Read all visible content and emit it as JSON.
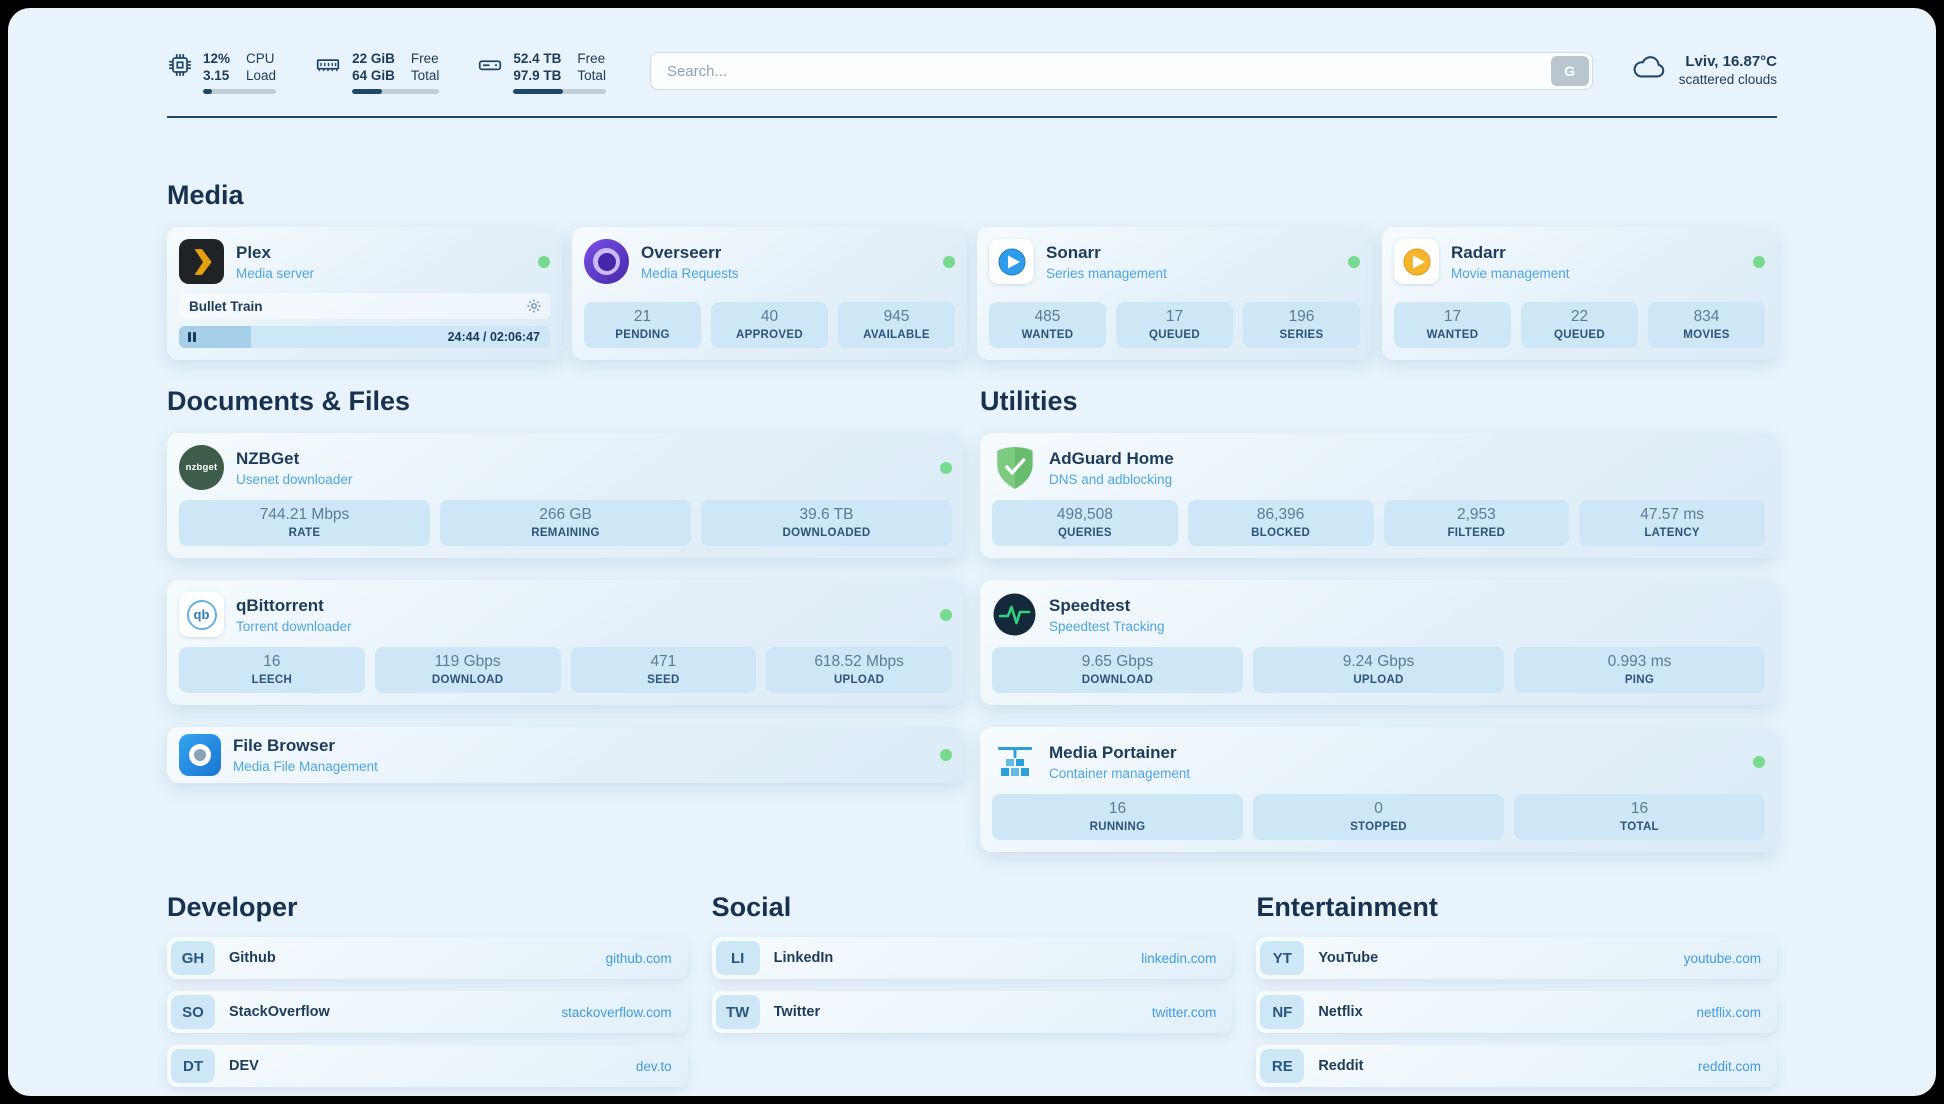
{
  "topbar": {
    "cpu": {
      "value_top": "12%",
      "value_bottom": "3.15",
      "label_top": "CPU",
      "label_bottom": "Load",
      "bar_percent": 12
    },
    "ram": {
      "value_top": "22 GiB",
      "value_bottom": "64 GiB",
      "label_top": "Free",
      "label_bottom": "Total",
      "bar_percent": 34
    },
    "disk": {
      "value_top": "52.4 TB",
      "value_bottom": "97.9 TB",
      "label_top": "Free",
      "label_bottom": "Total",
      "bar_percent": 54
    },
    "search": {
      "placeholder": "Search...",
      "button_label": "G"
    },
    "weather": {
      "location": "Lviv, 16.87°C",
      "condition": "scattered clouds"
    }
  },
  "media": {
    "title": "Media",
    "plex": {
      "name": "Plex",
      "subtitle": "Media server",
      "now_playing": "Bullet Train",
      "time": "24:44 / 02:06:47",
      "progress_percent": 19.5
    },
    "overseerr": {
      "name": "Overseerr",
      "subtitle": "Media Requests",
      "stats": [
        {
          "value": "21",
          "label": "PENDING"
        },
        {
          "value": "40",
          "label": "APPROVED"
        },
        {
          "value": "945",
          "label": "AVAILABLE"
        }
      ]
    },
    "sonarr": {
      "name": "Sonarr",
      "subtitle": "Series management",
      "stats": [
        {
          "value": "485",
          "label": "WANTED"
        },
        {
          "value": "17",
          "label": "QUEUED"
        },
        {
          "value": "196",
          "label": "SERIES"
        }
      ]
    },
    "radarr": {
      "name": "Radarr",
      "subtitle": "Movie management",
      "stats": [
        {
          "value": "17",
          "label": "WANTED"
        },
        {
          "value": "22",
          "label": "QUEUED"
        },
        {
          "value": "834",
          "label": "MOVIES"
        }
      ]
    }
  },
  "documents": {
    "title": "Documents & Files",
    "nzbget": {
      "name": "NZBGet",
      "subtitle": "Usenet downloader",
      "icon_text": "nzbget",
      "stats": [
        {
          "value": "744.21 Mbps",
          "label": "RATE"
        },
        {
          "value": "266 GB",
          "label": "REMAINING"
        },
        {
          "value": "39.6 TB",
          "label": "DOWNLOADED"
        }
      ]
    },
    "qbittorrent": {
      "name": "qBittorrent",
      "subtitle": "Torrent downloader",
      "icon_text": "qb",
      "stats": [
        {
          "value": "16",
          "label": "LEECH"
        },
        {
          "value": "119 Gbps",
          "label": "DOWNLOAD"
        },
        {
          "value": "471",
          "label": "SEED"
        },
        {
          "value": "618.52 Mbps",
          "label": "UPLOAD"
        }
      ]
    },
    "filebrowser": {
      "name": "File Browser",
      "subtitle": "Media File Management"
    }
  },
  "utilities": {
    "title": "Utilities",
    "adguard": {
      "name": "AdGuard Home",
      "subtitle": "DNS and adblocking",
      "stats": [
        {
          "value": "498,508",
          "label": "QUERIES"
        },
        {
          "value": "86,396",
          "label": "BLOCKED"
        },
        {
          "value": "2,953",
          "label": "FILTERED"
        },
        {
          "value": "47.57 ms",
          "label": "LATENCY"
        }
      ]
    },
    "speedtest": {
      "name": "Speedtest",
      "subtitle": "Speedtest Tracking",
      "stats": [
        {
          "value": "9.65 Gbps",
          "label": "DOWNLOAD"
        },
        {
          "value": "9.24 Gbps",
          "label": "UPLOAD"
        },
        {
          "value": "0.993 ms",
          "label": "PING"
        }
      ]
    },
    "portainer": {
      "name": "Media Portainer",
      "subtitle": "Container management",
      "stats": [
        {
          "value": "16",
          "label": "RUNNING"
        },
        {
          "value": "0",
          "label": "STOPPED"
        },
        {
          "value": "16",
          "label": "TOTAL"
        }
      ]
    }
  },
  "bookmarks": {
    "developer": {
      "title": "Developer",
      "links": [
        {
          "abbr": "GH",
          "name": "Github",
          "url": "github.com"
        },
        {
          "abbr": "SO",
          "name": "StackOverflow",
          "url": "stackoverflow.com"
        },
        {
          "abbr": "DT",
          "name": "DEV",
          "url": "dev.to"
        }
      ]
    },
    "social": {
      "title": "Social",
      "links": [
        {
          "abbr": "LI",
          "name": "LinkedIn",
          "url": "linkedin.com"
        },
        {
          "abbr": "TW",
          "name": "Twitter",
          "url": "twitter.com"
        }
      ]
    },
    "entertainment": {
      "title": "Entertainment",
      "links": [
        {
          "abbr": "YT",
          "name": "YouTube",
          "url": "youtube.com"
        },
        {
          "abbr": "NF",
          "name": "Netflix",
          "url": "netflix.com"
        },
        {
          "abbr": "RE",
          "name": "Reddit",
          "url": "reddit.com"
        }
      ]
    }
  }
}
